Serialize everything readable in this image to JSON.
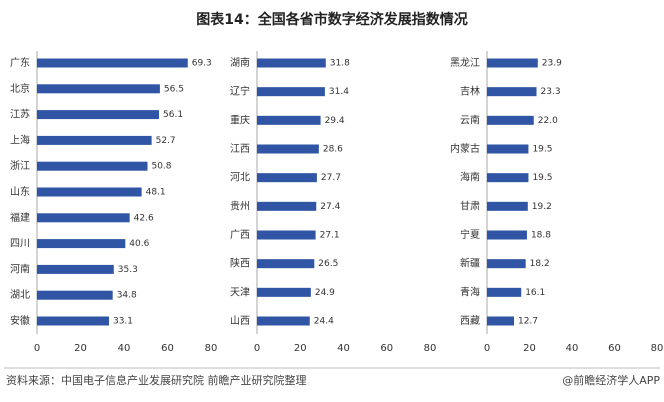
{
  "title": "图表14：全国各省市数字经济发展指数情况",
  "source": "资料来源：中国电子信息产业发展研究院 前瞻产业研究院整理",
  "credit": "@前瞻经济学人APP",
  "chart_data": [
    {
      "type": "bar",
      "orientation": "horizontal",
      "color": "#2f55a4",
      "categories": [
        "广东",
        "北京",
        "江苏",
        "上海",
        "浙江",
        "山东",
        "福建",
        "四川",
        "河南",
        "湖北",
        "安徽"
      ],
      "values": [
        69.3,
        56.5,
        56.1,
        52.7,
        50.8,
        48.1,
        42.6,
        40.6,
        35.3,
        34.8,
        33.1
      ],
      "value_labels": [
        "69.3",
        "56.5",
        "56.1",
        "52.7",
        "50.8",
        "48.1",
        "42.6",
        "40.6",
        "35.3",
        "34.8",
        "33.1"
      ],
      "xlim": [
        0,
        80
      ],
      "xticks": [
        0,
        20,
        40,
        60,
        80
      ]
    },
    {
      "type": "bar",
      "orientation": "horizontal",
      "color": "#2f55a4",
      "categories": [
        "湖南",
        "辽宁",
        "重庆",
        "江西",
        "河北",
        "贵州",
        "广西",
        "陕西",
        "天津",
        "山西"
      ],
      "values": [
        31.8,
        31.4,
        29.4,
        28.6,
        27.7,
        27.4,
        27.1,
        26.5,
        24.9,
        24.4
      ],
      "value_labels": [
        "31.8",
        "31.4",
        "29.4",
        "28.6",
        "27.7",
        "27.4",
        "27.1",
        "26.5",
        "24.9",
        "24.4"
      ],
      "xlim": [
        0,
        80
      ],
      "xticks": [
        0,
        20,
        40,
        60,
        80
      ]
    },
    {
      "type": "bar",
      "orientation": "horizontal",
      "color": "#2f55a4",
      "categories": [
        "黑龙江",
        "吉林",
        "云南",
        "内蒙古",
        "海南",
        "甘肃",
        "宁夏",
        "新疆",
        "青海",
        "西藏"
      ],
      "values": [
        23.9,
        23.3,
        22.0,
        19.5,
        19.5,
        19.2,
        18.8,
        18.2,
        16.1,
        12.7
      ],
      "value_labels": [
        "23.9",
        "23.3",
        "22.0",
        "19.5",
        "19.5",
        "19.2",
        "18.8",
        "18.2",
        "16.1",
        "12.7"
      ],
      "xlim": [
        0,
        80
      ],
      "xticks": [
        0,
        20,
        40,
        60,
        80
      ]
    }
  ]
}
